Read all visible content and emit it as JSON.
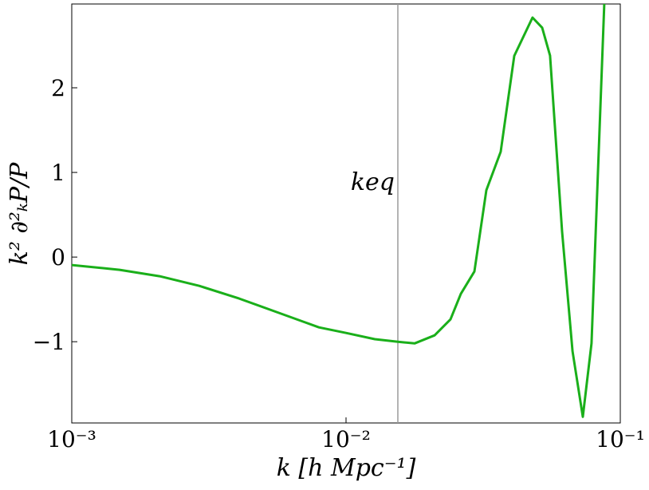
{
  "chart_data": {
    "type": "line",
    "xscale": "log",
    "xlabel": "k [h Mpc⁻¹]",
    "ylabel": "k² ∂²ₖP/P",
    "x": [
      0.001,
      0.001494,
      0.002089,
      0.002917,
      0.004077,
      0.005699,
      0.007962,
      0.01,
      0.01273,
      0.01545,
      0.01778,
      0.02103,
      0.02404,
      0.02622,
      0.02938,
      0.03248,
      0.03664,
      0.04105,
      0.04786,
      0.05188,
      0.05546,
      0.06136,
      0.06699,
      0.073,
      0.07852,
      0.0875
    ],
    "series": [
      {
        "color": "#1aaf1a",
        "values": [
          -0.094,
          -0.151,
          -0.226,
          -0.34,
          -0.49,
          -0.66,
          -0.83,
          -0.896,
          -0.97,
          -1.0,
          -1.02,
          -0.925,
          -0.736,
          -0.434,
          -0.17,
          0.79,
          1.245,
          2.377,
          2.83,
          2.71,
          2.38,
          0.3,
          -1.113,
          -1.887,
          -1.02,
          3.04
        ]
      }
    ],
    "vline": {
      "x": 0.01545,
      "label": "keq",
      "color": "#999999"
    },
    "xlim": [
      0.001,
      0.1
    ],
    "ylim": [
      -1.96,
      2.99
    ],
    "xticks": [
      {
        "value": 0.001,
        "label": "10⁻³"
      },
      {
        "value": 0.01,
        "label": "10⁻²"
      },
      {
        "value": 0.1,
        "label": "10⁻¹"
      }
    ],
    "yticks": [
      {
        "value": -1,
        "label": "−1"
      },
      0,
      1,
      2
    ]
  }
}
